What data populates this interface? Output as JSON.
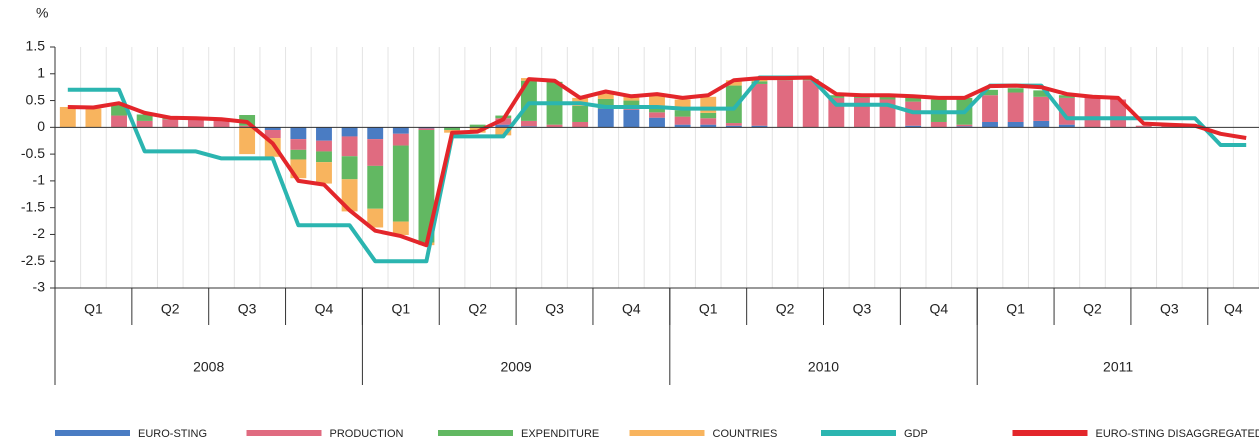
{
  "chart_data": {
    "type": "bar",
    "y_label": "%",
    "categories": [
      null,
      null,
      null,
      null,
      null,
      null,
      null,
      null,
      null,
      null,
      null,
      null,
      null,
      null,
      null,
      null,
      null,
      null,
      null,
      null,
      null,
      null,
      null,
      null,
      null,
      null,
      null,
      null,
      null,
      null,
      null,
      null,
      null,
      null,
      null,
      null,
      null,
      null,
      null,
      null,
      null,
      null,
      null,
      null,
      null,
      null,
      null
    ],
    "quarter_labels": [
      "Q1",
      "Q2",
      "Q3",
      "Q4",
      "Q1",
      "Q2",
      "Q3",
      "Q4",
      "Q1",
      "Q2",
      "Q3",
      "Q4",
      "Q1",
      "Q2",
      "Q3",
      "Q4"
    ],
    "year_labels": [
      "2008",
      "2009",
      "2010",
      "2011"
    ],
    "ylim": [
      -3,
      1.5
    ],
    "yticks": [
      1.5,
      1,
      0.5,
      0,
      -0.5,
      -1,
      -1.5,
      -2,
      -2.5,
      -3
    ],
    "series": [
      {
        "name": "EURO-STING",
        "type": "bar",
        "color": "#4a7cc3",
        "values": [
          0,
          0,
          0,
          0,
          0,
          0,
          0,
          0,
          -0.05,
          -0.22,
          -0.25,
          -0.17,
          -0.22,
          -0.12,
          -0.02,
          0,
          0,
          0.05,
          0.02,
          0,
          0,
          0.35,
          0.33,
          0.18,
          0.05,
          0.05,
          0.03,
          0.03,
          0,
          0,
          0,
          0,
          0,
          0.03,
          0,
          0.02,
          0.1,
          0.1,
          0.12,
          0.05,
          0,
          0,
          0,
          0,
          0,
          0,
          0
        ]
      },
      {
        "name": "PRODUCTION",
        "type": "bar",
        "color": "#e06b80",
        "values": [
          0,
          0,
          0.22,
          0.12,
          0.15,
          0.15,
          0.12,
          0.03,
          -0.15,
          -0.2,
          -0.2,
          -0.37,
          -0.5,
          -0.22,
          -0.03,
          0,
          0,
          0.12,
          0.1,
          0.05,
          0.1,
          0,
          0.05,
          0.1,
          0.15,
          0.12,
          0.05,
          0.78,
          0.88,
          0.88,
          0.55,
          0.55,
          0.52,
          0.45,
          0.1,
          0.03,
          0.5,
          0.55,
          0.45,
          0.5,
          0.55,
          0.52,
          0.03,
          0.03,
          0.02,
          0,
          0
        ]
      },
      {
        "name": "EXPENDITURE",
        "type": "bar",
        "color": "#62b862",
        "values": [
          0,
          0,
          0.2,
          0.12,
          0.02,
          0,
          0.05,
          0.2,
          0,
          -0.18,
          -0.2,
          -0.43,
          -0.8,
          -1.42,
          -2.1,
          -0.05,
          0.05,
          0.05,
          0.75,
          0.8,
          0.3,
          0.18,
          0.12,
          0.12,
          0.12,
          0.1,
          0.7,
          0.05,
          0.02,
          0.02,
          0.05,
          0.05,
          0.08,
          0.1,
          0.42,
          0.5,
          0.1,
          0.08,
          0.12,
          0.05,
          0,
          0,
          0,
          0,
          0,
          0,
          0
        ]
      },
      {
        "name": "COUNTRIES",
        "type": "bar",
        "color": "#f8b45e",
        "values": [
          0.38,
          0.35,
          0,
          0,
          0,
          0,
          0,
          -0.5,
          -0.35,
          -0.35,
          -0.4,
          -0.6,
          -0.35,
          -0.25,
          -0.05,
          -0.05,
          -0.1,
          -0.15,
          0.05,
          0,
          0.15,
          0.1,
          0.1,
          0.2,
          0.2,
          0.3,
          0.1,
          0.05,
          0,
          0,
          0,
          0,
          0,
          0,
          0,
          0,
          0,
          0,
          0,
          0,
          0,
          0,
          0,
          0,
          0,
          0,
          0
        ]
      },
      {
        "name": "GDP",
        "type": "line",
        "color": "#2bb5b0",
        "values": [
          0.7,
          0.7,
          0.7,
          -0.45,
          -0.45,
          -0.45,
          -0.58,
          -0.58,
          -0.58,
          -1.83,
          -1.83,
          -1.83,
          -2.5,
          -2.5,
          -2.5,
          -0.17,
          -0.17,
          -0.17,
          0.45,
          0.45,
          0.45,
          0.38,
          0.38,
          0.38,
          0.35,
          0.35,
          0.35,
          0.93,
          0.93,
          0.93,
          0.42,
          0.42,
          0.42,
          0.28,
          0.28,
          0.28,
          0.78,
          0.78,
          0.78,
          0.17,
          0.17,
          0.17,
          0.17,
          0.17,
          0.17,
          -0.33,
          -0.33
        ]
      },
      {
        "name": "EURO-STING DISAGGREGATED",
        "type": "line",
        "color": "#e3262b",
        "values": [
          0.38,
          0.37,
          0.45,
          0.27,
          0.18,
          0.17,
          0.15,
          0.1,
          -0.3,
          -1.0,
          -1.07,
          -1.55,
          -1.93,
          -2.03,
          -2.2,
          -0.1,
          -0.08,
          0.15,
          0.9,
          0.87,
          0.55,
          0.67,
          0.58,
          0.62,
          0.55,
          0.6,
          0.88,
          0.92,
          0.92,
          0.93,
          0.62,
          0.6,
          0.6,
          0.58,
          0.55,
          0.55,
          0.77,
          0.78,
          0.75,
          0.62,
          0.57,
          0.55,
          0.07,
          0.05,
          0.03,
          -0.12,
          -0.2
        ]
      }
    ]
  }
}
